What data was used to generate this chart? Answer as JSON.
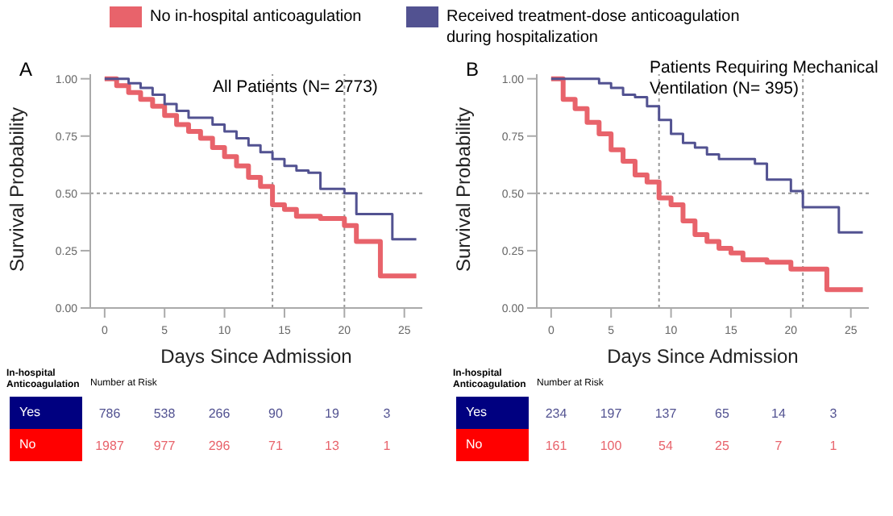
{
  "chart_data": [
    {
      "type": "step",
      "title": "A",
      "xlabel": "Days Since Admission",
      "ylabel": "Survival Probability",
      "xlim": [
        -1.2,
        26.5
      ],
      "xticks": [
        0,
        5,
        10,
        15,
        20,
        25
      ],
      "ylim": [
        0,
        1.02
      ],
      "yticks": [
        {
          "value": 0,
          "label": "0.00"
        },
        {
          "value": 0.25,
          "label": "0.25"
        },
        {
          "value": 0.5,
          "label": "0.50"
        },
        {
          "value": 0.75,
          "label": "0.75"
        },
        {
          "value": 1,
          "label": "1.00"
        }
      ],
      "grid": false,
      "legend": "top",
      "marker": "none",
      "series": [
        {
          "name": "No in-hospital anticoagulation",
          "color": "#e8636b",
          "x": [
            0,
            1,
            2,
            3,
            4,
            5,
            6,
            7,
            8,
            9,
            10,
            11,
            12,
            13,
            14,
            15,
            16,
            18,
            20,
            21,
            23,
            26
          ],
          "values": [
            1.0,
            0.97,
            0.94,
            0.91,
            0.88,
            0.84,
            0.8,
            0.77,
            0.74,
            0.7,
            0.66,
            0.62,
            0.57,
            0.53,
            0.45,
            0.43,
            0.4,
            0.39,
            0.36,
            0.29,
            0.14,
            0.14
          ]
        },
        {
          "name": "Received treatment-dose anticoagulation during hospitalization",
          "color": "#525291",
          "x": [
            0,
            2,
            3,
            4,
            5,
            6,
            7,
            9,
            10,
            11,
            12,
            13,
            14,
            15,
            16,
            17,
            18,
            20,
            21,
            24,
            26
          ],
          "values": [
            1.0,
            0.98,
            0.96,
            0.93,
            0.89,
            0.86,
            0.83,
            0.8,
            0.77,
            0.74,
            0.71,
            0.68,
            0.65,
            0.62,
            0.6,
            0.59,
            0.52,
            0.5,
            0.41,
            0.3,
            0.3
          ]
        }
      ],
      "ref_lines": [
        {
          "axis": "y",
          "value": 0.5,
          "line_style": "dotted",
          "color": "#999999"
        },
        {
          "axis": "x",
          "value": 14,
          "line_style": "dotted",
          "color": "#999999"
        },
        {
          "axis": "x",
          "value": 20,
          "line_style": "dotted",
          "color": "#999999"
        }
      ],
      "annotations": [
        "All Patients (N= 2773)",
        "In-hospital Anticoagulation",
        "Number at Risk",
        "Yes",
        "786",
        "538",
        "266",
        "90",
        "19",
        "3",
        "No",
        "1987",
        "977",
        "296",
        "71",
        "13",
        "1"
      ]
    },
    {
      "type": "step",
      "title": "B",
      "xlabel": "Days Since Admission",
      "ylabel": "Survival Probability",
      "xlim": [
        -1.2,
        26.5
      ],
      "xticks": [
        0,
        5,
        10,
        15,
        20,
        25
      ],
      "ylim": [
        0,
        1.02
      ],
      "yticks": [
        {
          "value": 0,
          "label": "0.00"
        },
        {
          "value": 0.25,
          "label": "0.25"
        },
        {
          "value": 0.5,
          "label": "0.50"
        },
        {
          "value": 0.75,
          "label": "0.75"
        },
        {
          "value": 1,
          "label": "1.00"
        }
      ],
      "grid": false,
      "marker": "none",
      "series": [
        {
          "color": "#e8636b",
          "x": [
            0,
            1,
            2,
            3,
            4,
            5,
            6,
            7,
            8,
            9,
            10,
            11,
            12,
            13,
            14,
            15,
            16,
            18,
            20,
            23,
            26
          ],
          "values": [
            1.0,
            0.91,
            0.87,
            0.81,
            0.76,
            0.69,
            0.64,
            0.58,
            0.55,
            0.48,
            0.45,
            0.38,
            0.32,
            0.29,
            0.26,
            0.24,
            0.21,
            0.2,
            0.17,
            0.08,
            0.08
          ]
        },
        {
          "color": "#525291",
          "x": [
            0,
            4,
            5,
            6,
            7,
            8,
            9,
            10,
            11,
            12,
            13,
            14,
            17,
            18,
            20,
            21,
            24,
            26
          ],
          "values": [
            1.0,
            0.98,
            0.96,
            0.93,
            0.92,
            0.88,
            0.82,
            0.76,
            0.72,
            0.7,
            0.67,
            0.65,
            0.63,
            0.56,
            0.51,
            0.44,
            0.33,
            0.33
          ]
        }
      ],
      "ref_lines": [
        {
          "axis": "y",
          "value": 0.5,
          "line_style": "dotted",
          "color": "#999999"
        },
        {
          "axis": "x",
          "value": 9,
          "line_style": "dotted",
          "color": "#999999"
        },
        {
          "axis": "x",
          "value": 21,
          "line_style": "dotted",
          "color": "#999999"
        }
      ],
      "annotations": [
        "Patients Requiring Mechanical Ventilation (N= 395)",
        "In-hospital Anticoagulation",
        "Number at Risk",
        "Yes",
        "234",
        "197",
        "137",
        "65",
        "14",
        "3",
        "No",
        "161",
        "100",
        "54",
        "25",
        "7",
        "1"
      ]
    }
  ]
}
